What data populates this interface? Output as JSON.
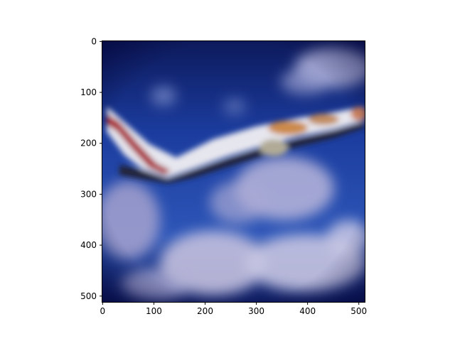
{
  "figure": {
    "image_subject": "airplane-in-sky",
    "colors": {
      "sky_dark": "#0d1a5c",
      "sky_mid": "#1b3c9e",
      "sky_light": "#3a63c4",
      "cloud": "#c9c8e0",
      "fuselage": "#e6e6ee",
      "belly": "#222436",
      "stripe_red": "#a8242a",
      "livery_orange": "#c97f3a",
      "axis": "#000000"
    },
    "x_axis": {
      "ticks": [
        {
          "value": 0,
          "label": "0"
        },
        {
          "value": 100,
          "label": "100"
        },
        {
          "value": 200,
          "label": "200"
        },
        {
          "value": 300,
          "label": "300"
        },
        {
          "value": 400,
          "label": "400"
        },
        {
          "value": 500,
          "label": "500"
        }
      ],
      "range": [
        -0.5,
        511.5
      ]
    },
    "y_axis": {
      "ticks": [
        {
          "value": 0,
          "label": "0"
        },
        {
          "value": 100,
          "label": "100"
        },
        {
          "value": 200,
          "label": "200"
        },
        {
          "value": 300,
          "label": "300"
        },
        {
          "value": 400,
          "label": "400"
        },
        {
          "value": 500,
          "label": "500"
        }
      ],
      "range": [
        -0.5,
        511.5
      ]
    }
  }
}
